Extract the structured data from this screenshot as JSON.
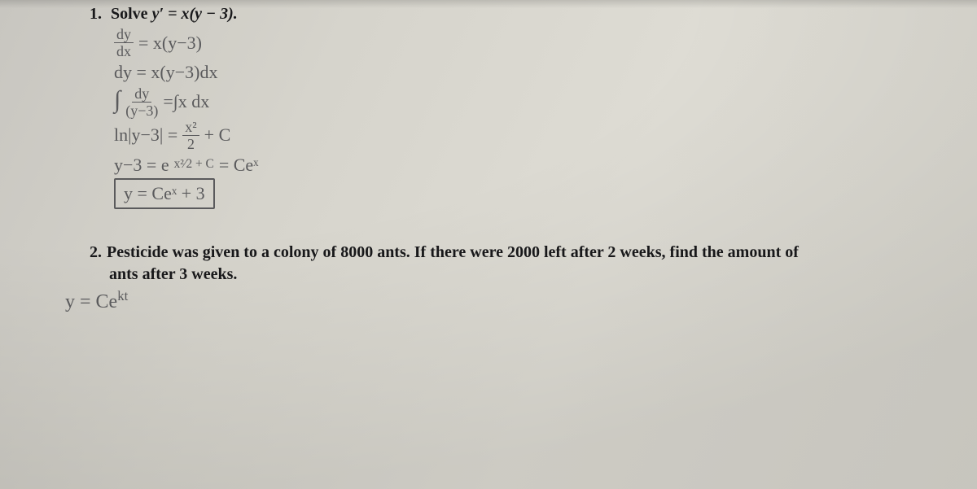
{
  "colors": {
    "paper_bg_stops": [
      "#c8c6c0",
      "#d6d4cc",
      "#dedcD4",
      "#d8d6ce"
    ],
    "printed_text": "#18181a",
    "handwriting": "#5a5a5c",
    "box_border": "#5a5a5c"
  },
  "typography": {
    "printed_font": "Georgia / Times New Roman, bold",
    "printed_fontsize_pt": 15,
    "handwriting_font": "Comic Sans MS / Segoe Script",
    "handwriting_fontsize_pt": 17
  },
  "problem1": {
    "number": "1.",
    "prompt_plain": "Solve y′ = x(y − 3).",
    "prompt_prefix": "Solve ",
    "prompt_math": "y′ = x(y − 3).",
    "work": {
      "line1": {
        "frac_top": "dy",
        "frac_bot": "dx",
        "rest": " = x(y−3)"
      },
      "line2": "dy = x(y−3)dx",
      "line3": {
        "int_left_top": "dy",
        "int_left_bot": "(y−3)",
        "rhs": "=∫x dx"
      },
      "line4": {
        "lhs": "ln|y−3| = ",
        "frac_top": "x²",
        "frac_bot": "2",
        "tail": " + C"
      },
      "line5": {
        "lhs": "y−3 = e",
        "exp": "x²⁄2 + C",
        "tail": " = Ceˣ"
      },
      "line6_boxed": "y = Ceˣ + 3"
    }
  },
  "problem2": {
    "number": "2.",
    "prompt_line1": "Pesticide was given to a colony of 8000 ants. If there were 2000 left after 2 weeks, find the amount of",
    "prompt_line2": "ants after 3 weeks.",
    "work_line": "y = Ceᵏᵗ",
    "work_exp": "kt"
  }
}
